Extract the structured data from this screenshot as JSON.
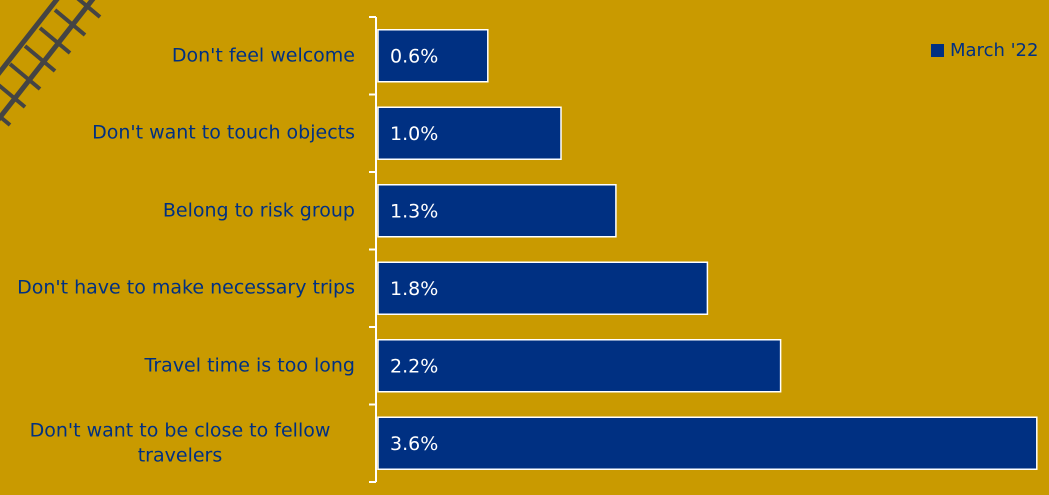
{
  "chart_data": {
    "type": "bar",
    "orientation": "horizontal",
    "categories": [
      "Don't feel welcome",
      "Don't want to touch objects",
      "Belong to risk group",
      "Don't have to make necessary trips",
      "Travel time is too long",
      "Don't want to be close to fellow travelers"
    ],
    "series": [
      {
        "name": "March '22",
        "color": "#003082",
        "values": [
          0.6,
          1.0,
          1.3,
          1.8,
          2.2,
          3.6
        ],
        "value_labels": [
          "0.6%",
          "1.0%",
          "1.3%",
          "1.8%",
          "2.2%",
          "3.6%"
        ]
      }
    ],
    "legend": "top-right"
  }
}
